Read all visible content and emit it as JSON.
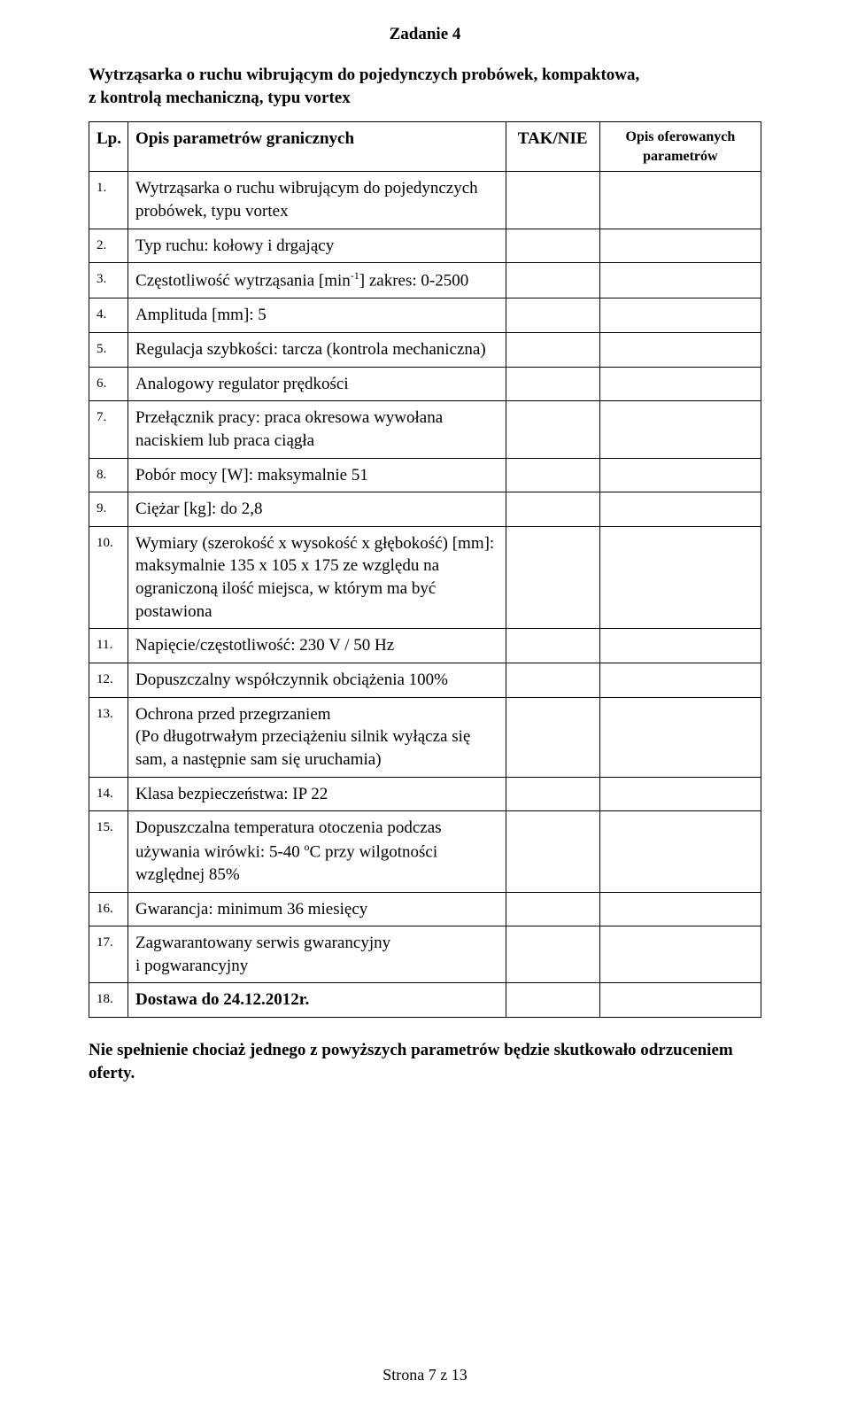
{
  "task_title": "Zadanie 4",
  "subtitle_line1": "Wytrząsarka o ruchu wibrującym  do pojedynczych probówek, kompaktowa,",
  "subtitle_line2": " z kontrolą mechaniczną, typu vortex",
  "header": {
    "lp": "Lp.",
    "opis": "Opis parametrów granicznych",
    "taknie": "TAK/NIE",
    "ofer": "Opis oferowanych parametrów"
  },
  "rows": [
    {
      "lp": "1.",
      "text": "Wytrząsarka o ruchu wibrującym do pojedynczych probówek, typu  vortex"
    },
    {
      "lp": "2.",
      "text": "Typ ruchu: kołowy i drgający"
    },
    {
      "lp": "3.",
      "text_pre": "Częstotliwość wytrząsania [min",
      "text_post": "] zakres: 0-2500",
      "sup": "-1"
    },
    {
      "lp": "4.",
      "text": "Amplituda [mm]: 5"
    },
    {
      "lp": "5.",
      "text": "Regulacja szybkości: tarcza (kontrola mechaniczna)"
    },
    {
      "lp": "6.",
      "text": "Analogowy regulator prędkości"
    },
    {
      "lp": "7.",
      "text": "Przełącznik pracy: praca okresowa wywołana naciskiem lub praca ciągła"
    },
    {
      "lp": "8.",
      "text": "Pobór mocy [W]: maksymalnie 51"
    },
    {
      "lp": "9.",
      "text": "Ciężar [kg]: do 2,8"
    },
    {
      "lp": "10.",
      "text": "Wymiary (szerokość x wysokość x głębokość) [mm]: maksymalnie 135 x 105 x 175 ze względu na ograniczoną ilość miejsca,  w którym ma być postawiona"
    },
    {
      "lp": "11.",
      "text": "Napięcie/częstotliwość: 230 V / 50 Hz"
    },
    {
      "lp": "12.",
      "text": "Dopuszczalny współczynnik obciążenia 100%"
    },
    {
      "lp": "13.",
      "text": "Ochrona przed przegrzaniem",
      "text2": "(Po długotrwałym przeciążeniu silnik wyłącza się sam, a następnie sam się uruchamia)"
    },
    {
      "lp": "14.",
      "text": "Klasa bezpieczeństwa: IP 22"
    },
    {
      "lp": "15.",
      "text_pre2": "Dopuszczalna temperatura otoczenia podczas używania wirówki: 5-40 ",
      "deg": "o",
      "text_post2": "C  przy wilgotności względnej 85%"
    },
    {
      "lp": "16.",
      "text": "Gwarancja: minimum 36 miesięcy"
    },
    {
      "lp": "17.",
      "text": "Zagwarantowany serwis gwarancyjny",
      "text2": "i pogwarancyjny"
    },
    {
      "lp": "18.",
      "text": "Dostawa do 24.12.2012r.",
      "bold": true
    }
  ],
  "footnote": "Nie spełnienie chociaż jednego z powyższych parametrów będzie skutkowało odrzuceniem oferty.",
  "page_number": "Strona 7 z 13"
}
